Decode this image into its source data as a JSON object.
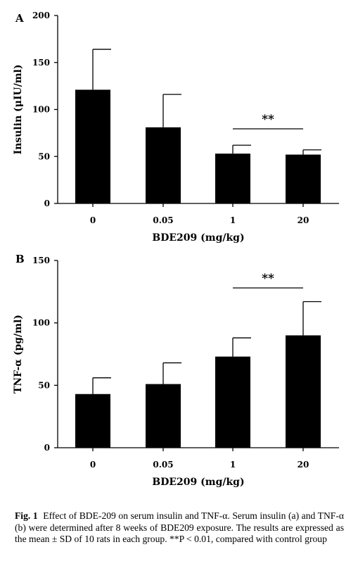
{
  "chart_data": [
    {
      "type": "bar",
      "panel_label": "A",
      "categories": [
        "0",
        "0.05",
        "1",
        "20"
      ],
      "values": [
        121,
        81,
        53,
        52
      ],
      "error_bars": [
        43,
        35,
        9,
        5
      ],
      "ylabel": "Insulin (μIU/ml)",
      "xlabel": "BDE209 (mg/kg)",
      "ylim": [
        0,
        200
      ],
      "yticks": [
        0,
        50,
        100,
        150,
        200
      ],
      "significance": {
        "label": "**",
        "from": "1",
        "to": "20"
      },
      "grid": false
    },
    {
      "type": "bar",
      "panel_label": "B",
      "categories": [
        "0",
        "0.05",
        "1",
        "20"
      ],
      "values": [
        43,
        51,
        73,
        90
      ],
      "error_bars": [
        13,
        17,
        15,
        27
      ],
      "ylabel": "TNF-α (pg/ml)",
      "xlabel": "BDE209 (mg/kg)",
      "ylim": [
        0,
        150
      ],
      "yticks": [
        0,
        50,
        100,
        150
      ],
      "significance": {
        "label": "**",
        "from": "1",
        "to": "20"
      },
      "grid": false
    }
  ],
  "caption": {
    "fig_label": "Fig. 1",
    "text": "Effect of BDE-209 on serum insulin and TNF-α. Serum insulin (a) and TNF-α (b) were determined after 8 weeks of BDE209 exposure. The results are expressed as the mean ± SD of 10 rats in each group. **P < 0.01, compared with control group"
  }
}
